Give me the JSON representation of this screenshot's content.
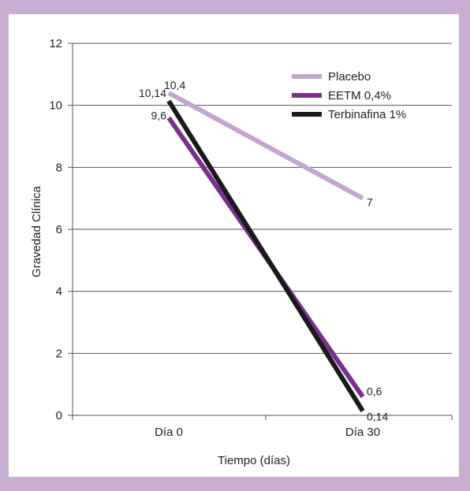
{
  "chart_data": {
    "type": "line",
    "categories": [
      "Día 0",
      "Día 30"
    ],
    "xlabel": "Tiempo (días)",
    "ylabel": "Gravedad Clínica",
    "ylim": [
      0,
      12
    ],
    "yticks": [
      0,
      2,
      4,
      6,
      8,
      10,
      12
    ],
    "grid": true,
    "legend_position": "top-right",
    "series": [
      {
        "name": "Placebo",
        "values": [
          10.4,
          7
        ],
        "labels": [
          "10,4",
          "7"
        ],
        "color": "#c3a5cf"
      },
      {
        "name": "EETM 0,4%",
        "values": [
          9.6,
          0.6
        ],
        "labels": [
          "9,6",
          "0,6"
        ],
        "color": "#7b2e8e"
      },
      {
        "name": "Terbinafina 1%",
        "values": [
          10.14,
          0.14
        ],
        "labels": [
          "10,14",
          "0,14"
        ],
        "color": "#1a1a1a"
      }
    ]
  }
}
